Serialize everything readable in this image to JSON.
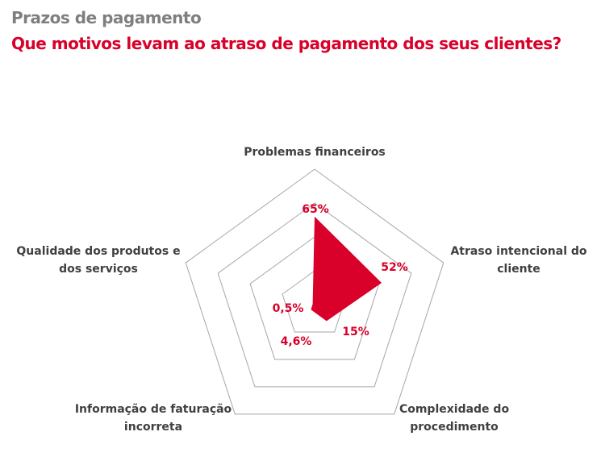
{
  "header": {
    "title": "Prazos de pagamento",
    "subtitle": "Que motivos levam ao atraso de pagamento dos seus clientes?"
  },
  "chart_data": {
    "type": "radar",
    "title": "Que motivos levam ao atraso de pagamento dos seus clientes?",
    "categories": [
      [
        "Problemas financeiros"
      ],
      [
        "Atraso intencional do",
        "cliente"
      ],
      [
        "Complexidade do",
        "procedimento"
      ],
      [
        "Informação de faturação",
        "incorreta"
      ],
      [
        "Qualidade dos produtos e",
        "dos serviços"
      ]
    ],
    "values": [
      65,
      52,
      15,
      4.6,
      0.5
    ],
    "value_labels": [
      "65%",
      "52%",
      "15%",
      "4,6%",
      "0,5%"
    ],
    "rlim": [
      0,
      100
    ],
    "rings": [
      25,
      50,
      75,
      100
    ],
    "fill_color": "#d9002a",
    "grid_color": "#a6a6a6"
  }
}
